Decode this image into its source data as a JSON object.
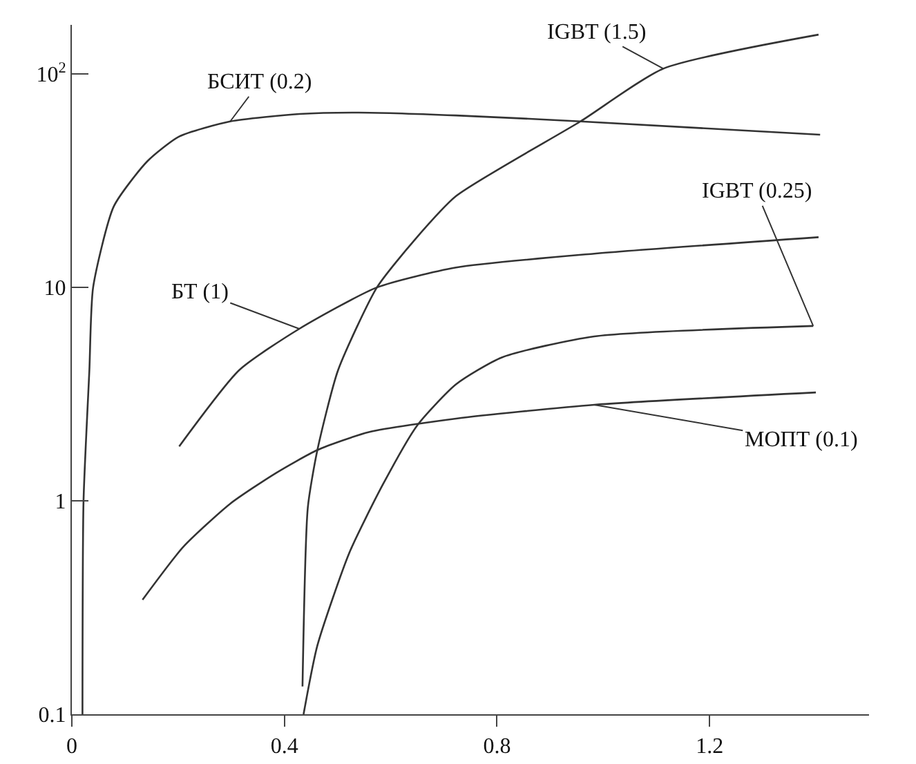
{
  "chart_data": {
    "type": "line",
    "log": true,
    "grid": false,
    "legend": false,
    "marker": "none",
    "line_style": "solid",
    "xlim": [
      0,
      1.5
    ],
    "ylim": [
      0.1,
      170
    ],
    "xticks": [
      0,
      0.4,
      0.8,
      1.2
    ],
    "yticks": [
      0.1,
      1,
      10,
      {
        "value": 100,
        "label": "10$^{2}$"
      }
    ],
    "series": [
      {
        "name": "БСИТ (0.2)",
        "color": "#333333",
        "x": [
          0.02,
          0.022,
          0.033,
          0.04,
          0.079,
          0.142,
          0.202,
          0.298,
          0.428,
          0.54,
          0.723,
          0.957,
          1.408
        ],
        "values": [
          0.1,
          1.0,
          4.1,
          10,
          24,
          39,
          51,
          60,
          65,
          66,
          64,
          60,
          52
        ]
      },
      {
        "name": "БТ (1)",
        "color": "#333333",
        "x": [
          0.202,
          0.315,
          0.428,
          0.574,
          0.723,
          0.983,
          1.405
        ],
        "values": [
          1.8,
          4.1,
          6.4,
          10,
          12.4,
          14.4,
          17.2
        ]
      },
      {
        "name": "IGBT (1.5)",
        "color": "#333333",
        "x": [
          0.434,
          0.444,
          0.462,
          0.501,
          0.574,
          0.645,
          0.723,
          0.957,
          1.113,
          1.405
        ],
        "values": [
          0.135,
          0.93,
          1.73,
          4.1,
          10,
          16.7,
          26.8,
          60,
          106,
          153
        ]
      },
      {
        "name": "IGBT (0.25)",
        "color": "#333333",
        "x": [
          0.436,
          0.462,
          0.522,
          0.585,
          0.65,
          0.723,
          0.809,
          0.983,
          1.395
        ],
        "values": [
          0.1,
          0.21,
          0.57,
          1.19,
          2.26,
          3.52,
          4.7,
          5.9,
          6.6
        ]
      },
      {
        "name": "МОПТ (0.1)",
        "color": "#333333",
        "x": [
          0.133,
          0.21,
          0.298,
          0.384,
          0.462,
          0.559,
          0.723,
          0.983,
          1.4
        ],
        "values": [
          0.344,
          0.61,
          0.97,
          1.35,
          1.73,
          2.1,
          2.43,
          2.82,
          3.22
        ]
      }
    ]
  }
}
